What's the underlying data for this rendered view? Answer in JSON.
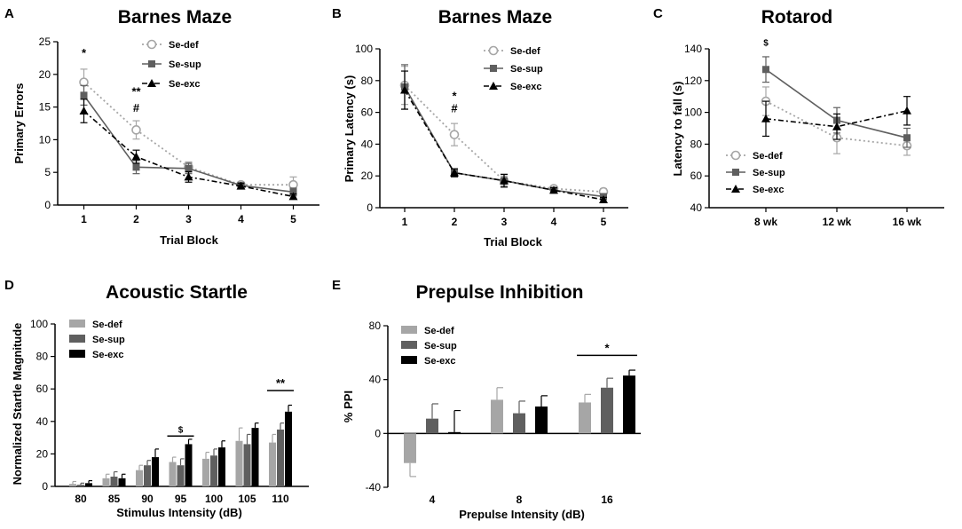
{
  "colors": {
    "def": "#a6a6a6",
    "sup": "#5f5f5f",
    "exc": "#000000",
    "axis": "#000000"
  },
  "chart_data": [
    {
      "panel": "A",
      "type": "line",
      "title": "Barnes Maze",
      "xlabel": "Trial Block",
      "ylabel": "Primary Errors",
      "x": [
        1,
        2,
        3,
        4,
        5
      ],
      "xlim": [
        0.5,
        5.5
      ],
      "ylim": [
        0,
        25
      ],
      "yticks": [
        0,
        5,
        10,
        15,
        20,
        25
      ],
      "series": [
        {
          "name": "Se-def",
          "values": [
            18.8,
            11.5,
            5.8,
            3.1,
            3.1
          ],
          "errors": [
            2.0,
            1.4,
            0.8,
            0.4,
            1.2
          ]
        },
        {
          "name": "Se-sup",
          "values": [
            16.8,
            5.8,
            5.6,
            3.0,
            2.0
          ],
          "errors": [
            1.5,
            1.0,
            0.8,
            0.4,
            0.6
          ]
        },
        {
          "name": "Se-exc",
          "values": [
            14.4,
            7.4,
            4.3,
            2.9,
            1.3
          ],
          "errors": [
            1.8,
            1.0,
            0.8,
            0.4,
            0.4
          ]
        }
      ],
      "annotations": [
        {
          "x": 1,
          "y": 22.7,
          "text": "*"
        },
        {
          "x": 2,
          "y": 16.8,
          "text": "**"
        },
        {
          "x": 2,
          "y": 14.3,
          "text": "#"
        }
      ]
    },
    {
      "panel": "B",
      "type": "line",
      "title": "Barnes Maze",
      "xlabel": "Trial Block",
      "ylabel": "Primary Latency (s)",
      "x": [
        1,
        2,
        3,
        4,
        5
      ],
      "xlim": [
        0.5,
        5.5
      ],
      "ylim": [
        0,
        100
      ],
      "yticks": [
        0,
        20,
        40,
        60,
        80,
        100
      ],
      "series": [
        {
          "name": "Se-def",
          "values": [
            77,
            46,
            17,
            12,
            10
          ],
          "errors": [
            12,
            7,
            3,
            1.5,
            2
          ]
        },
        {
          "name": "Se-sup",
          "values": [
            76,
            22,
            17,
            11,
            7
          ],
          "errors": [
            14,
            2.5,
            4,
            1.5,
            1.5
          ]
        },
        {
          "name": "Se-exc",
          "values": [
            74,
            22,
            17,
            11,
            5
          ],
          "errors": [
            12,
            2.5,
            4,
            1.5,
            1.5
          ]
        }
      ],
      "annotations": [
        {
          "x": 2,
          "y": 68,
          "text": "*"
        },
        {
          "x": 2,
          "y": 60,
          "text": "#"
        }
      ]
    },
    {
      "panel": "C",
      "type": "line",
      "title": "Rotarod",
      "xlabel": "",
      "ylabel": "Latency to fall (s)",
      "categories": [
        "8 wk",
        "12 wk",
        "16 wk"
      ],
      "ylim": [
        40,
        140
      ],
      "yticks": [
        40,
        60,
        80,
        100,
        120,
        140
      ],
      "series": [
        {
          "name": "Se-def",
          "values": [
            107,
            84,
            79
          ],
          "errors": [
            9,
            10,
            6
          ]
        },
        {
          "name": "Se-sup",
          "values": [
            127,
            95,
            84
          ],
          "errors": [
            8,
            8,
            6
          ]
        },
        {
          "name": "Se-exc",
          "values": [
            96,
            91,
            101
          ],
          "errors": [
            11,
            8,
            9
          ]
        }
      ],
      "annotations": [
        {
          "cat": 0,
          "y": 142,
          "text": "$"
        }
      ]
    },
    {
      "panel": "D",
      "type": "bar",
      "title": "Acoustic Startle",
      "xlabel": "Stimulus Intensity (dB)",
      "ylabel": "Normalized Startle Magnitude",
      "categories": [
        "80",
        "85",
        "90",
        "95",
        "100",
        "105",
        "110"
      ],
      "ylim": [
        0,
        100
      ],
      "yticks": [
        0,
        20,
        40,
        60,
        80,
        100
      ],
      "series": [
        {
          "name": "Se-def",
          "values": [
            1.5,
            5,
            10,
            15,
            17,
            28,
            27
          ],
          "errors": [
            1.5,
            2.5,
            3,
            3,
            4,
            8,
            5
          ]
        },
        {
          "name": "Se-sup",
          "values": [
            1,
            6,
            13,
            13,
            19,
            26,
            35
          ],
          "errors": [
            1,
            3,
            3,
            4,
            4,
            6,
            4
          ]
        },
        {
          "name": "Se-exc",
          "values": [
            2,
            5,
            18,
            26,
            24,
            36,
            46
          ],
          "errors": [
            1.5,
            2.5,
            5,
            3,
            4,
            3,
            4
          ]
        }
      ],
      "brackets": [
        {
          "from": 3,
          "to": 3,
          "y": 31,
          "text": "$"
        },
        {
          "from": 6,
          "to": 6,
          "y": 59,
          "text": "**"
        }
      ]
    },
    {
      "panel": "E",
      "type": "bar",
      "title": "Prepulse Inhibition",
      "xlabel": "Prepulse Intensity (dB)",
      "ylabel": "% PPI",
      "categories": [
        "4",
        "8",
        "16"
      ],
      "ylim": [
        -40,
        80
      ],
      "yticks": [
        -40,
        0,
        40,
        80
      ],
      "series": [
        {
          "name": "Se-def",
          "values": [
            -22,
            25,
            23
          ],
          "errors": [
            10,
            9,
            6
          ]
        },
        {
          "name": "Se-sup",
          "values": [
            11,
            15,
            34
          ],
          "errors": [
            11,
            9,
            7
          ]
        },
        {
          "name": "Se-exc",
          "values": [
            1,
            20,
            43
          ],
          "errors": [
            16,
            8,
            4
          ]
        }
      ],
      "brackets": [
        {
          "from": 2,
          "to": 2,
          "y": 58,
          "text": "*"
        }
      ]
    }
  ]
}
